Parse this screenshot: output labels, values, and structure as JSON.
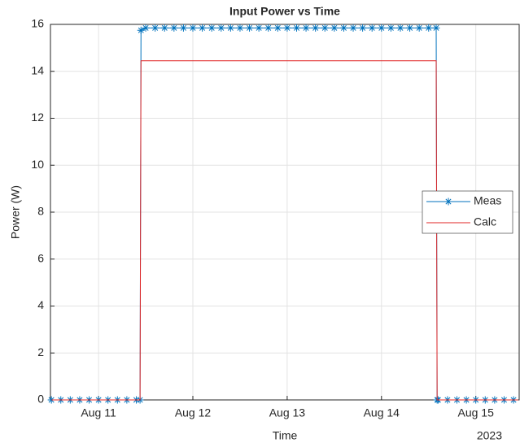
{
  "chart_data": {
    "type": "line",
    "title": "Input Power vs Time",
    "xlabel": "Time",
    "ylabel": "Power (W)",
    "x_year_label": "2023",
    "xlim": [
      10.49,
      15.46
    ],
    "ylim": [
      0,
      16
    ],
    "xticks": [
      {
        "value": 11,
        "label": "Aug 11"
      },
      {
        "value": 12,
        "label": "Aug 12"
      },
      {
        "value": 13,
        "label": "Aug 13"
      },
      {
        "value": 14,
        "label": "Aug 14"
      },
      {
        "value": 15,
        "label": "Aug 15"
      }
    ],
    "yticks": [
      0,
      2,
      4,
      6,
      8,
      10,
      12,
      14,
      16
    ],
    "grid": true,
    "legend": "east",
    "series": [
      {
        "name": "Meas",
        "color": "#0072bd",
        "marker": "asterisk",
        "x": [
          10.5,
          10.6,
          10.7,
          10.8,
          10.9,
          11,
          11.1,
          11.2,
          11.3,
          11.4,
          11.44,
          11.45,
          11.5,
          11.6,
          11.7,
          11.8,
          11.9,
          12,
          12.1,
          12.2,
          12.3,
          12.4,
          12.5,
          12.6,
          12.7,
          12.8,
          12.9,
          13,
          13.1,
          13.2,
          13.3,
          13.4,
          13.5,
          13.6,
          13.7,
          13.8,
          13.9,
          14,
          14.1,
          14.2,
          14.3,
          14.4,
          14.5,
          14.58,
          14.59,
          14.6,
          14.7,
          14.8,
          14.9,
          15,
          15.1,
          15.2,
          15.3,
          15.4
        ],
        "values": [
          0,
          0,
          0,
          0,
          0,
          0,
          0,
          0,
          0,
          0,
          0,
          15.75,
          15.85,
          15.85,
          15.85,
          15.85,
          15.85,
          15.85,
          15.85,
          15.85,
          15.85,
          15.85,
          15.85,
          15.85,
          15.85,
          15.85,
          15.85,
          15.85,
          15.85,
          15.85,
          15.85,
          15.85,
          15.85,
          15.85,
          15.85,
          15.85,
          15.85,
          15.85,
          15.85,
          15.85,
          15.85,
          15.85,
          15.85,
          15.85,
          0,
          0,
          0,
          0,
          0,
          0,
          0,
          0,
          0,
          0
        ]
      },
      {
        "name": "Calc",
        "color": "#e02424",
        "x": [
          10.5,
          11.44,
          11.45,
          14.58,
          14.59,
          15.45
        ],
        "values": [
          0,
          0,
          14.45,
          14.45,
          0,
          0
        ]
      }
    ]
  }
}
